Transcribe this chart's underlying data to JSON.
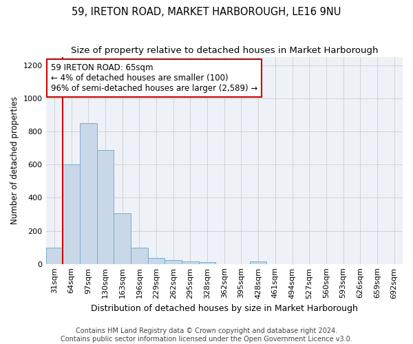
{
  "title": "59, IRETON ROAD, MARKET HARBOROUGH, LE16 9NU",
  "subtitle": "Size of property relative to detached houses in Market Harborough",
  "xlabel": "Distribution of detached houses by size in Market Harborough",
  "ylabel": "Number of detached properties",
  "bin_labels": [
    "31sqm",
    "64sqm",
    "97sqm",
    "130sqm",
    "163sqm",
    "196sqm",
    "229sqm",
    "262sqm",
    "295sqm",
    "328sqm",
    "362sqm",
    "395sqm",
    "428sqm",
    "461sqm",
    "494sqm",
    "527sqm",
    "560sqm",
    "593sqm",
    "626sqm",
    "659sqm",
    "692sqm"
  ],
  "bar_heights": [
    100,
    600,
    850,
    690,
    305,
    100,
    35,
    25,
    15,
    10,
    0,
    0,
    15,
    0,
    0,
    0,
    0,
    0,
    0,
    0,
    0
  ],
  "bar_color": "#c8d8e8",
  "bar_edge_color": "#7aaccc",
  "grid_color": "#cccccc",
  "bg_color": "#eef2f8",
  "fig_bg_color": "#ffffff",
  "vline_color": "#cc0000",
  "annotation_text": "59 IRETON ROAD: 65sqm\n← 4% of detached houses are smaller (100)\n96% of semi-detached houses are larger (2,589) →",
  "annotation_box_color": "#ffffff",
  "annotation_box_edge": "#cc0000",
  "ylim": [
    0,
    1250
  ],
  "yticks": [
    0,
    200,
    400,
    600,
    800,
    1000,
    1200
  ],
  "footnote": "Contains HM Land Registry data © Crown copyright and database right 2024.\nContains public sector information licensed under the Open Government Licence v3.0.",
  "title_fontsize": 10.5,
  "subtitle_fontsize": 9.5,
  "xlabel_fontsize": 9,
  "ylabel_fontsize": 8.5,
  "tick_fontsize": 8,
  "annot_fontsize": 8.5,
  "footnote_fontsize": 7
}
